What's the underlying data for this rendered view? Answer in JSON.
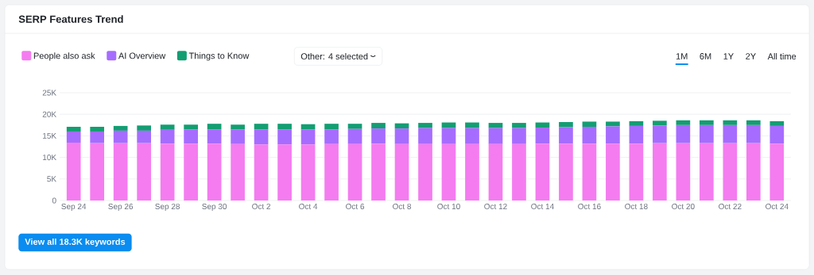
{
  "chart_data": {
    "type": "bar",
    "title": "SERP Features Trend",
    "stacked": true,
    "categories": [
      "Sep 24",
      null,
      "Sep 26",
      null,
      "Sep 28",
      null,
      "Sep 30",
      null,
      "Oct 2",
      null,
      "Oct 4",
      null,
      "Oct 6",
      null,
      "Oct 8",
      null,
      "Oct 10",
      null,
      "Oct 12",
      null,
      "Oct 14",
      null,
      "Oct 16",
      null,
      "Oct 18",
      null,
      "Oct 20",
      null,
      "Oct 22",
      null,
      "Oct 24"
    ],
    "series": [
      {
        "name": "People also ask",
        "color": "#f47cf0",
        "values": [
          13400,
          13300,
          13300,
          13300,
          13200,
          13200,
          13200,
          13100,
          13000,
          13000,
          13000,
          13100,
          13100,
          13200,
          13100,
          13100,
          13100,
          13100,
          13100,
          13100,
          13200,
          13200,
          13200,
          13200,
          13200,
          13300,
          13300,
          13300,
          13300,
          13300,
          13200
        ]
      },
      {
        "name": "AI Overview",
        "color": "#a66cff",
        "values": [
          2600,
          2700,
          2900,
          2900,
          3200,
          3300,
          3300,
          3400,
          3500,
          3500,
          3500,
          3400,
          3500,
          3500,
          3600,
          3700,
          3700,
          3700,
          3700,
          3700,
          3700,
          3800,
          3900,
          4000,
          4100,
          4100,
          4200,
          4200,
          4200,
          4200,
          4100
        ]
      },
      {
        "name": "Things to Know",
        "color": "#139e72",
        "values": [
          1100,
          1100,
          1100,
          1200,
          1200,
          1100,
          1300,
          1100,
          1300,
          1300,
          1200,
          1300,
          1200,
          1300,
          1200,
          1200,
          1300,
          1300,
          1200,
          1200,
          1200,
          1200,
          1200,
          1100,
          1100,
          1100,
          1100,
          1100,
          1100,
          1100,
          1100
        ]
      }
    ],
    "ylim": [
      0,
      25000
    ],
    "yticks": [
      0,
      {
        "value": 5000,
        "label": "5K"
      },
      {
        "value": 10000,
        "label": "10K"
      },
      {
        "value": 15000,
        "label": "15K"
      },
      {
        "value": 20000,
        "label": "20K"
      },
      {
        "value": 25000,
        "label": "25K"
      }
    ],
    "grid": "y",
    "legend": "top left",
    "annotations": [
      "Other: 4 selected",
      "1M",
      "6M",
      "1Y",
      "2Y",
      "All time",
      "View all 18.3K keywords"
    ]
  }
}
